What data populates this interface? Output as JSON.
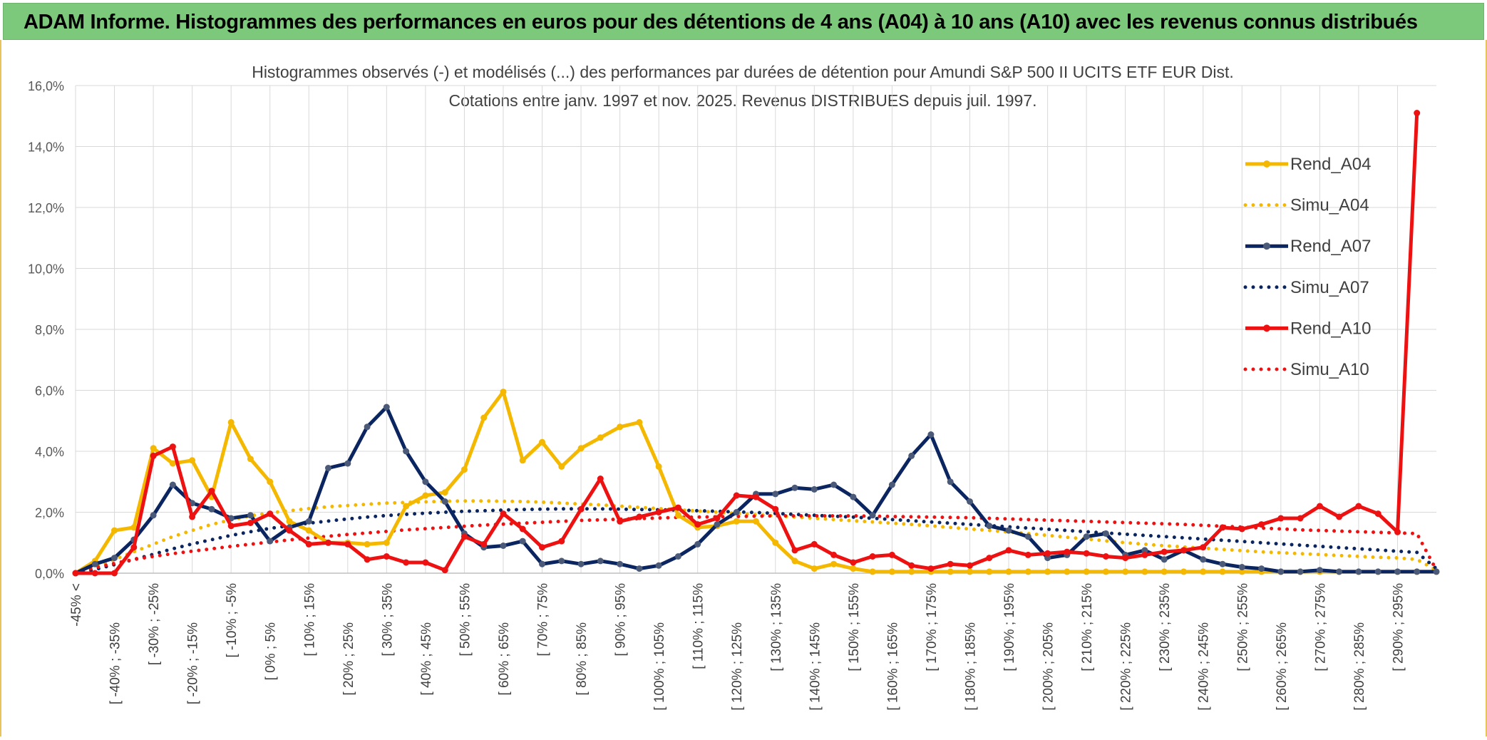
{
  "banner": {
    "title": "ADAM Informe. Histogrammes des performances en euros pour des détentions de 4 ans (A04) à 10 ans (A10) avec les revenus connus distribués"
  },
  "colors": {
    "banner_bg": "#7dc97b",
    "gold": "#f5b800",
    "navy": "#0b2560",
    "red": "#ee1111",
    "grid": "#d9d9d9"
  },
  "chart_data": {
    "type": "line",
    "title": "Histogrammes observés (-) et modélisés (...) des performances par durées de détention pour Amundi S&P 500 II UCITS ETF EUR Dist.",
    "subtitle": "Cotations entre janv. 1997 et nov. 2025. Revenus DISTRIBUES depuis juil. 1997.",
    "ylim": [
      0,
      16
    ],
    "yticks": [
      "0,0%",
      "2,0%",
      "4,0%",
      "6,0%",
      "8,0%",
      "10,0%",
      "12,0%",
      "14,0%",
      "16,0%"
    ],
    "legend_position": "top-right",
    "x_labels": [
      "-45% <",
      "[ -40% ; -35%",
      "[ -30% ; -25%",
      "[ -20% ; -15%",
      "[ -10% ; -5%",
      "[ 0% ; 5%",
      "[ 10% ; 15%",
      "[ 20% ; 25%",
      "[ 30% ; 35%",
      "[ 40% ; 45%",
      "[ 50% ; 55%",
      "[ 60% ; 65%",
      "[ 70% ; 75%",
      "[ 80% ; 85%",
      "[ 90% ; 95%",
      "[ 100% ; 105%",
      "[ 110% ; 115%",
      "[ 120% ; 125%",
      "[ 130% ; 135%",
      "[ 140% ; 145%",
      "[ 150% ; 155%",
      "[ 160% ; 165%",
      "[ 170% ; 175%",
      "[ 180% ; 185%",
      "[ 190% ; 195%",
      "[ 200% ; 205%",
      "[ 210% ; 215%",
      "[ 220% ; 225%",
      "[ 230% ; 235%",
      "[ 240% ; 245%",
      "[ 250% ; 255%",
      "[ 260% ; 265%",
      "[ 270% ; 275%",
      "[ 280% ; 285%",
      "[ 290% ; 295%"
    ],
    "series": [
      {
        "name": "Rend_A04",
        "style": "solid",
        "color": "#f5b800",
        "values": [
          0,
          0.4,
          1.4,
          1.5,
          4.1,
          3.6,
          3.7,
          2.5,
          4.95,
          3.75,
          3.0,
          1.7,
          1.4,
          1.0,
          1.0,
          0.95,
          1.0,
          2.2,
          2.55,
          2.65,
          3.4,
          5.1,
          5.95,
          3.7,
          4.3,
          3.5,
          4.1,
          4.45,
          4.8,
          4.95,
          3.5,
          1.9,
          1.5,
          1.55,
          1.7,
          1.7,
          1.0,
          0.4,
          0.15,
          0.3,
          0.15,
          0.05,
          0.05,
          0.05,
          0.05,
          0.05,
          0.05,
          0.05,
          0.05,
          0.05,
          0.05,
          0.05,
          0.05,
          0.05,
          0.05,
          0.05,
          0.05,
          0.05,
          0.05,
          0.05,
          0.05,
          0.05,
          0.05,
          0.05,
          0.05,
          0.05,
          0.05,
          0.05,
          0.05,
          0.05,
          0.05
        ]
      },
      {
        "name": "Simu_A04",
        "style": "dotted",
        "color": "#f5b800",
        "values": [
          0,
          0.2,
          0.45,
          0.7,
          0.95,
          1.2,
          1.4,
          1.6,
          1.75,
          1.88,
          1.98,
          2.05,
          2.12,
          2.18,
          2.22,
          2.26,
          2.3,
          2.32,
          2.34,
          2.36,
          2.37,
          2.37,
          2.36,
          2.35,
          2.33,
          2.3,
          2.27,
          2.24,
          2.2,
          2.16,
          2.12,
          2.08,
          2.04,
          2.0,
          1.96,
          1.92,
          1.88,
          1.84,
          1.8,
          1.76,
          1.72,
          1.68,
          1.64,
          1.6,
          1.55,
          1.5,
          1.45,
          1.4,
          1.35,
          1.3,
          1.24,
          1.18,
          1.12,
          1.06,
          1.0,
          0.95,
          0.9,
          0.86,
          0.82,
          0.78,
          0.74,
          0.7,
          0.67,
          0.64,
          0.61,
          0.58,
          0.55,
          0.52,
          0.5,
          0.45,
          0.1
        ]
      },
      {
        "name": "Rend_A07",
        "style": "solid",
        "color": "#0b2560",
        "values": [
          0,
          0.3,
          0.5,
          1.1,
          1.9,
          2.9,
          2.3,
          2.1,
          1.8,
          1.9,
          1.05,
          1.5,
          1.7,
          3.45,
          3.6,
          4.8,
          5.45,
          4.0,
          3.0,
          2.35,
          1.3,
          0.85,
          0.9,
          1.05,
          0.3,
          0.4,
          0.3,
          0.4,
          0.3,
          0.15,
          0.25,
          0.55,
          0.95,
          1.6,
          2.0,
          2.6,
          2.6,
          2.8,
          2.75,
          2.9,
          2.5,
          1.9,
          2.9,
          3.85,
          4.55,
          3.0,
          2.35,
          1.55,
          1.4,
          1.2,
          0.5,
          0.6,
          1.2,
          1.3,
          0.6,
          0.75,
          0.45,
          0.75,
          0.45,
          0.3,
          0.2,
          0.15,
          0.05,
          0.05,
          0.1,
          0.05,
          0.05,
          0.05,
          0.05,
          0.05,
          0.05
        ]
      },
      {
        "name": "Simu_A07",
        "style": "dotted",
        "color": "#0b2560",
        "values": [
          0,
          0.12,
          0.28,
          0.45,
          0.62,
          0.8,
          0.96,
          1.1,
          1.24,
          1.36,
          1.47,
          1.56,
          1.64,
          1.71,
          1.78,
          1.84,
          1.89,
          1.93,
          1.97,
          2.0,
          2.03,
          2.05,
          2.07,
          2.09,
          2.1,
          2.11,
          2.11,
          2.11,
          2.1,
          2.09,
          2.08,
          2.07,
          2.05,
          2.03,
          2.01,
          1.99,
          1.96,
          1.93,
          1.9,
          1.87,
          1.84,
          1.8,
          1.76,
          1.72,
          1.68,
          1.64,
          1.6,
          1.56,
          1.52,
          1.48,
          1.44,
          1.4,
          1.36,
          1.32,
          1.28,
          1.24,
          1.2,
          1.16,
          1.12,
          1.08,
          1.04,
          1.0,
          0.96,
          0.92,
          0.88,
          0.84,
          0.8,
          0.76,
          0.72,
          0.68,
          0.15
        ]
      },
      {
        "name": "Rend_A10",
        "style": "solid",
        "color": "#ee1111",
        "values": [
          0,
          0,
          0,
          0.85,
          3.85,
          4.15,
          1.85,
          2.7,
          1.55,
          1.65,
          1.95,
          1.4,
          0.95,
          1.0,
          0.95,
          0.45,
          0.55,
          0.35,
          0.35,
          0.1,
          1.2,
          0.95,
          1.95,
          1.45,
          0.85,
          1.05,
          2.1,
          3.1,
          1.7,
          1.85,
          2.0,
          2.15,
          1.6,
          1.8,
          2.55,
          2.5,
          2.1,
          0.75,
          0.95,
          0.6,
          0.35,
          0.55,
          0.6,
          0.25,
          0.15,
          0.3,
          0.25,
          0.5,
          0.75,
          0.6,
          0.65,
          0.7,
          0.65,
          0.55,
          0.5,
          0.6,
          0.7,
          0.75,
          0.85,
          1.5,
          1.45,
          1.6,
          1.8,
          1.8,
          2.2,
          1.85,
          2.2,
          1.95,
          1.35,
          15.1
        ]
      },
      {
        "name": "Simu_A10",
        "style": "dotted",
        "color": "#ee1111",
        "values": [
          0,
          0.18,
          0.32,
          0.45,
          0.55,
          0.64,
          0.72,
          0.8,
          0.88,
          0.95,
          1.02,
          1.09,
          1.15,
          1.21,
          1.27,
          1.32,
          1.37,
          1.42,
          1.46,
          1.5,
          1.54,
          1.58,
          1.61,
          1.64,
          1.67,
          1.7,
          1.73,
          1.75,
          1.77,
          1.79,
          1.81,
          1.83,
          1.84,
          1.85,
          1.86,
          1.87,
          1.88,
          1.88,
          1.88,
          1.88,
          1.88,
          1.87,
          1.86,
          1.85,
          1.84,
          1.83,
          1.82,
          1.8,
          1.78,
          1.76,
          1.74,
          1.72,
          1.7,
          1.68,
          1.66,
          1.64,
          1.62,
          1.6,
          1.57,
          1.54,
          1.51,
          1.48,
          1.45,
          1.42,
          1.4,
          1.38,
          1.36,
          1.34,
          1.32,
          1.3,
          0.1
        ]
      }
    ]
  }
}
